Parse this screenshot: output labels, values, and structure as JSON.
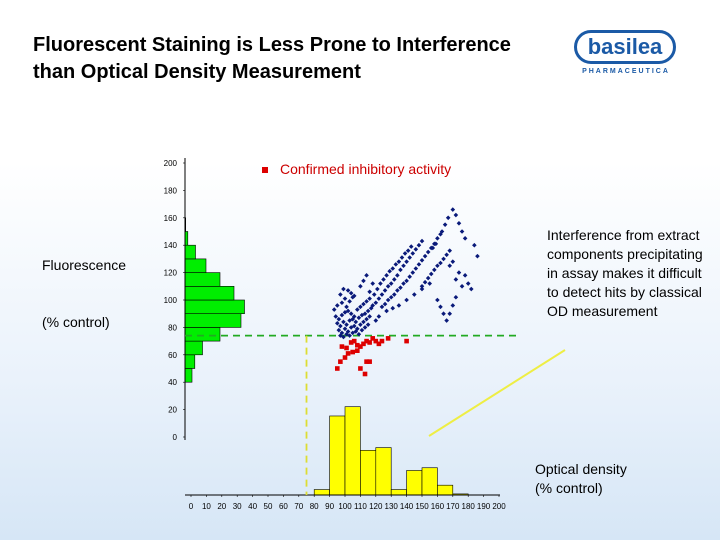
{
  "slide": {
    "title": "Fluorescent Staining is Less Prone to Interference than Optical Density Measurement",
    "logo_name": "basilea",
    "logo_sub": "PHARMACEUTICA"
  },
  "colors": {
    "logo": "#1b5aa6",
    "fluorescence_hist": "#00ee00",
    "od_hist": "#ffff00",
    "scatter_main": "#0a1a7a",
    "scatter_hit": "#dd0000",
    "threshold_fluor": "#22aa22",
    "threshold_od": "#dddd33",
    "arrow": "#eeee44"
  },
  "labels": {
    "fluorescence_1": "Fluorescence",
    "fluorescence_2": "(% control)",
    "legend": "Confirmed inhibitory activity",
    "annotation": "Interference from extract components precipitating in assay makes it difficult to detect hits by classical OD measurement",
    "od_1": "Optical density",
    "od_2": "(% control)"
  },
  "chart_data": {
    "type": "scatter",
    "x_ticks": [
      "0",
      "10",
      "20",
      "30",
      "40",
      "50",
      "60",
      "70",
      "80",
      "90",
      "100",
      "110",
      "120",
      "130",
      "140",
      "150",
      "160",
      "170",
      "180",
      "190",
      "200"
    ],
    "y_ticks": [
      "0",
      "20",
      "40",
      "60",
      "80",
      "100",
      "120",
      "140",
      "160",
      "180",
      "200"
    ],
    "xlim": [
      0,
      200
    ],
    "ylim": [
      0,
      200
    ],
    "thresholds": {
      "fluorescence": 74,
      "optical_density": 75
    },
    "fluorescence_histogram": {
      "bin_centers": [
        5,
        15,
        25,
        35,
        45,
        55,
        65,
        75,
        85,
        95,
        105,
        115,
        125,
        135,
        145,
        155,
        165,
        175,
        185,
        195
      ],
      "lengths": [
        0,
        0,
        0,
        0,
        1,
        1.4,
        2.5,
        5,
        8,
        8.5,
        7,
        5,
        3,
        1.5,
        0.4,
        0.1,
        0,
        0,
        0,
        0
      ]
    },
    "od_histogram": {
      "bin_centers": [
        85,
        95,
        105,
        115,
        125,
        135,
        145,
        155,
        165,
        175
      ],
      "lengths": [
        1,
        14.5,
        16.2,
        8.2,
        8.7,
        1,
        4.5,
        5,
        1.8,
        0.2
      ]
    },
    "series": [
      {
        "name": "",
        "marker": "diamond",
        "points": [
          [
            93,
            93
          ],
          [
            95,
            96
          ],
          [
            98,
            98
          ],
          [
            100,
            101
          ],
          [
            101,
            95
          ],
          [
            103,
            99
          ],
          [
            105,
            102
          ],
          [
            97,
            104
          ],
          [
            99,
            108
          ],
          [
            102,
            107
          ],
          [
            104,
            105
          ],
          [
            106,
            103
          ],
          [
            94,
            88
          ],
          [
            96,
            86
          ],
          [
            98,
            89
          ],
          [
            100,
            91
          ],
          [
            102,
            92
          ],
          [
            104,
            90
          ],
          [
            106,
            88
          ],
          [
            108,
            93
          ],
          [
            110,
            95
          ],
          [
            112,
            97
          ],
          [
            114,
            99
          ],
          [
            116,
            101
          ],
          [
            95,
            83
          ],
          [
            97,
            81
          ],
          [
            99,
            84
          ],
          [
            101,
            82
          ],
          [
            103,
            85
          ],
          [
            105,
            86
          ],
          [
            107,
            84
          ],
          [
            109,
            87
          ],
          [
            111,
            89
          ],
          [
            113,
            90
          ],
          [
            115,
            92
          ],
          [
            117,
            94
          ],
          [
            96,
            78
          ],
          [
            98,
            76
          ],
          [
            100,
            79
          ],
          [
            102,
            77
          ],
          [
            104,
            80
          ],
          [
            106,
            81
          ],
          [
            108,
            79
          ],
          [
            110,
            82
          ],
          [
            112,
            84
          ],
          [
            114,
            86
          ],
          [
            116,
            88
          ],
          [
            97,
            74
          ],
          [
            99,
            73
          ],
          [
            101,
            75
          ],
          [
            103,
            74
          ],
          [
            105,
            76
          ],
          [
            107,
            77
          ],
          [
            109,
            75
          ],
          [
            111,
            78
          ],
          [
            113,
            80
          ],
          [
            115,
            82
          ],
          [
            118,
            96
          ],
          [
            120,
            98
          ],
          [
            122,
            101
          ],
          [
            124,
            104
          ],
          [
            126,
            107
          ],
          [
            128,
            110
          ],
          [
            130,
            112
          ],
          [
            119,
            104
          ],
          [
            121,
            108
          ],
          [
            123,
            112
          ],
          [
            125,
            115
          ],
          [
            127,
            118
          ],
          [
            129,
            121
          ],
          [
            131,
            123
          ],
          [
            133,
            126
          ],
          [
            135,
            128
          ],
          [
            137,
            131
          ],
          [
            139,
            134
          ],
          [
            141,
            136
          ],
          [
            143,
            139
          ],
          [
            132,
            115
          ],
          [
            134,
            118
          ],
          [
            136,
            122
          ],
          [
            138,
            125
          ],
          [
            140,
            128
          ],
          [
            142,
            131
          ],
          [
            144,
            134
          ],
          [
            146,
            137
          ],
          [
            148,
            140
          ],
          [
            150,
            143
          ],
          [
            124,
            95
          ],
          [
            126,
            97
          ],
          [
            128,
            100
          ],
          [
            130,
            102
          ],
          [
            132,
            104
          ],
          [
            134,
            107
          ],
          [
            136,
            109
          ],
          [
            138,
            112
          ],
          [
            140,
            114
          ],
          [
            142,
            117
          ],
          [
            144,
            120
          ],
          [
            146,
            123
          ],
          [
            148,
            126
          ],
          [
            150,
            129
          ],
          [
            152,
            132
          ],
          [
            154,
            135
          ],
          [
            156,
            138
          ],
          [
            158,
            141
          ],
          [
            160,
            145
          ],
          [
            162,
            148
          ],
          [
            150,
            110
          ],
          [
            152,
            113
          ],
          [
            154,
            116
          ],
          [
            156,
            119
          ],
          [
            158,
            122
          ],
          [
            160,
            125
          ],
          [
            162,
            127
          ],
          [
            164,
            130
          ],
          [
            166,
            133
          ],
          [
            168,
            136
          ],
          [
            157,
            138
          ],
          [
            159,
            141
          ],
          [
            163,
            150
          ],
          [
            165,
            155
          ],
          [
            167,
            160
          ],
          [
            170,
            166
          ],
          [
            172,
            162
          ],
          [
            174,
            156
          ],
          [
            176,
            150
          ],
          [
            178,
            145
          ],
          [
            168,
            125
          ],
          [
            170,
            128
          ],
          [
            172,
            115
          ],
          [
            174,
            120
          ],
          [
            176,
            110
          ],
          [
            178,
            118
          ],
          [
            180,
            112
          ],
          [
            182,
            108
          ],
          [
            184,
            140
          ],
          [
            186,
            132
          ],
          [
            160,
            100
          ],
          [
            162,
            95
          ],
          [
            164,
            90
          ],
          [
            166,
            85
          ],
          [
            168,
            90
          ],
          [
            170,
            96
          ],
          [
            172,
            102
          ],
          [
            120,
            85
          ],
          [
            122,
            88
          ],
          [
            127,
            92
          ],
          [
            131,
            94
          ],
          [
            135,
            96
          ],
          [
            140,
            100
          ],
          [
            145,
            104
          ],
          [
            150,
            108
          ],
          [
            155,
            112
          ],
          [
            110,
            110
          ],
          [
            112,
            114
          ],
          [
            114,
            118
          ],
          [
            116,
            106
          ],
          [
            118,
            112
          ]
        ]
      },
      {
        "name": "Confirmed inhibitory activity",
        "marker": "square",
        "points": [
          [
            98,
            66
          ],
          [
            101,
            65
          ],
          [
            104,
            69
          ],
          [
            106,
            70
          ],
          [
            108,
            67
          ],
          [
            110,
            66
          ],
          [
            112,
            68
          ],
          [
            114,
            70
          ],
          [
            116,
            69
          ],
          [
            118,
            72
          ],
          [
            120,
            70
          ],
          [
            122,
            68
          ],
          [
            124,
            70
          ],
          [
            102,
            61
          ],
          [
            105,
            62
          ],
          [
            108,
            63
          ],
          [
            100,
            58
          ],
          [
            97,
            55
          ],
          [
            95,
            50
          ],
          [
            110,
            50
          ],
          [
            114,
            55
          ],
          [
            113,
            46
          ],
          [
            116,
            55
          ],
          [
            128,
            72
          ],
          [
            140,
            70
          ]
        ]
      }
    ]
  }
}
